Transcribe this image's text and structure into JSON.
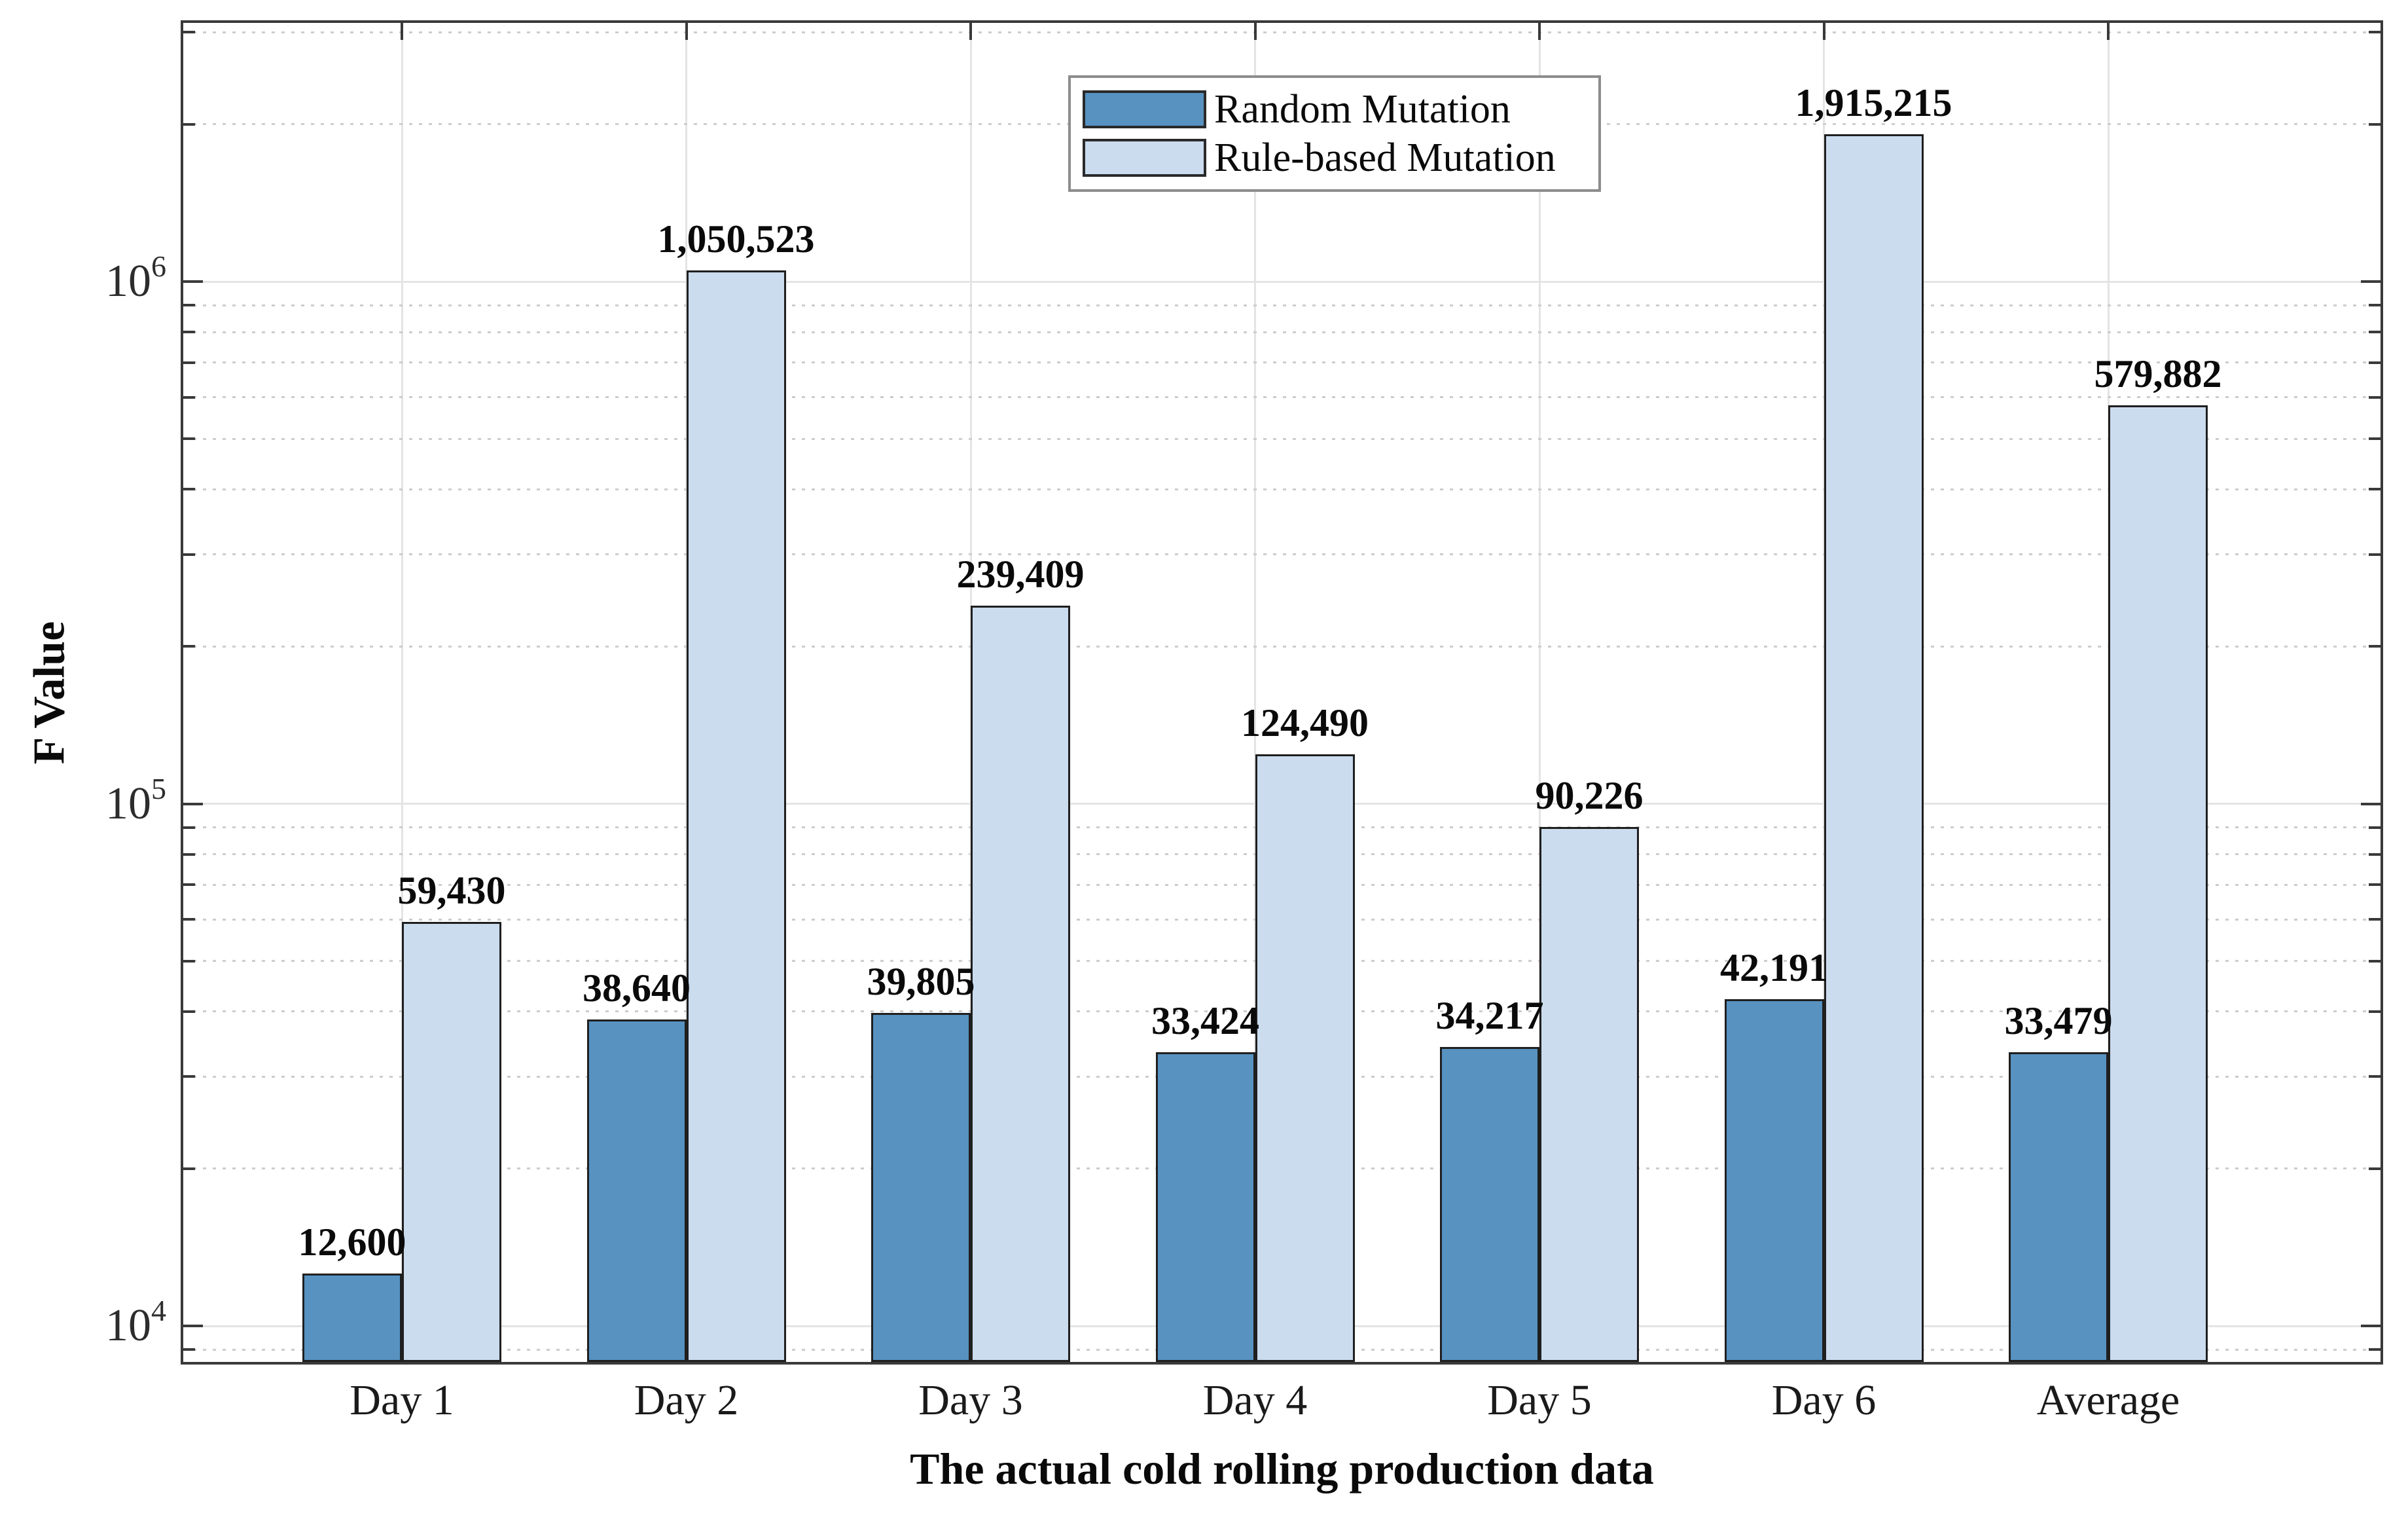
{
  "chart_data": {
    "type": "bar",
    "title": "",
    "xlabel": "The actual cold rolling production data",
    "ylabel": "F Value",
    "yscale": "log",
    "ylim": [
      8500,
      3130000
    ],
    "ytick_values": [
      10000,
      100000,
      1000000
    ],
    "ytick_labels": [
      "10⁴",
      "10⁵",
      "10⁶"
    ],
    "categories": [
      "Day 1",
      "Day 2",
      "Day 3",
      "Day 4",
      "Day 5",
      "Day 6",
      "Average"
    ],
    "series": [
      {
        "name": "Random Mutation",
        "color": "#5792c1",
        "values": [
          12600,
          38640,
          39805,
          33424,
          34217,
          42191,
          33479
        ],
        "labels": [
          "12,600",
          "38,640",
          "39,805",
          "33,424",
          "34,217",
          "42,191",
          "33,479"
        ]
      },
      {
        "name": "Rule-based Mutation",
        "color": "#cbdcef",
        "values": [
          59430,
          1050523,
          239409,
          124490,
          90226,
          1915215,
          579882
        ],
        "labels": [
          "59,430",
          "1,050,523",
          "239,409",
          "124,490",
          "90,226",
          "1,915,215",
          "579,882"
        ]
      }
    ],
    "legend": {
      "position": "top-center",
      "items": [
        "Random Mutation",
        "Rule-based Mutation"
      ]
    },
    "grid": {
      "vertical_major": true,
      "horizontal_major": true,
      "horizontal_minor_dotted": true
    }
  },
  "colors": {
    "bar_edge": "#1f1f1f",
    "frame": "#3a3a3a",
    "grid_major": "#e4e4e4",
    "grid_minor": "#cdcdcd",
    "legend_border": "#8c8c8c",
    "text": "#111111"
  }
}
